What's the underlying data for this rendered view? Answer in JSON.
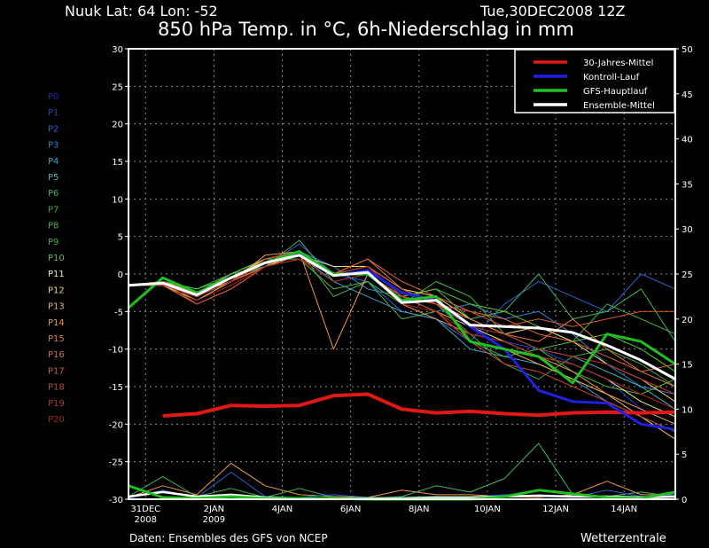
{
  "header": {
    "location": "Nuuk  Lat: 64 Lon: -52",
    "run": "Tue,30DEC2008 12Z",
    "title": "850 hPa Temp. in °C, 6h-Niederschlag in mm"
  },
  "footer": {
    "source": "Daten: Ensembles des GFS von NCEP",
    "brand": "Wetterzentrale"
  },
  "chart_data": {
    "type": "line",
    "title": "850 hPa Temp. in °C, 6h-Niederschlag in mm",
    "x_range": [
      "2008-12-30T12:00Z",
      "2009-01-15T12:00Z"
    ],
    "x": [
      "2008-12-30T12:00Z",
      "2008-12-31T12:00Z",
      "2009-01-01T12:00Z",
      "2009-01-02T12:00Z",
      "2009-01-03T12:00Z",
      "2009-01-04T12:00Z",
      "2009-01-05T12:00Z",
      "2009-01-06T12:00Z",
      "2009-01-07T12:00Z",
      "2009-01-08T12:00Z",
      "2009-01-09T12:00Z",
      "2009-01-10T12:00Z",
      "2009-01-11T12:00Z",
      "2009-01-12T12:00Z",
      "2009-01-13T12:00Z",
      "2009-01-14T12:00Z",
      "2009-01-15T12:00Z"
    ],
    "x_ticks": [
      {
        "date": "2008-12-31T00:00Z",
        "label": "31DEC",
        "sub": "2008"
      },
      {
        "date": "2009-01-02T00:00Z",
        "label": "2JAN",
        "sub": "2009"
      },
      {
        "date": "2009-01-04T00:00Z",
        "label": "4JAN",
        "sub": ""
      },
      {
        "date": "2009-01-06T00:00Z",
        "label": "6JAN",
        "sub": ""
      },
      {
        "date": "2009-01-08T00:00Z",
        "label": "8JAN",
        "sub": ""
      },
      {
        "date": "2009-01-10T00:00Z",
        "label": "10JAN",
        "sub": ""
      },
      {
        "date": "2009-01-12T00:00Z",
        "label": "12JAN",
        "sub": ""
      },
      {
        "date": "2009-01-14T00:00Z",
        "label": "14JAN",
        "sub": ""
      }
    ],
    "y_left": {
      "label": "°C",
      "range": [
        -30,
        30
      ],
      "ticks": [
        -30,
        -25,
        -20,
        -15,
        -10,
        -5,
        0,
        5,
        10,
        15,
        20,
        25,
        30
      ]
    },
    "y_right": {
      "label": "mm",
      "range": [
        0,
        50
      ],
      "ticks": [
        0,
        5,
        10,
        15,
        20,
        25,
        30,
        35,
        40,
        45,
        50
      ]
    },
    "grid": true,
    "legend_position": "top-right",
    "legend": [
      {
        "name": "30-Jahres-Mittel",
        "color": "#e01818"
      },
      {
        "name": "Kontroll-Lauf",
        "color": "#2020e0"
      },
      {
        "name": "GFS-Hauptlauf",
        "color": "#20c020"
      },
      {
        "name": "Ensemble-Mittel",
        "color": "#ffffff"
      }
    ],
    "main_series": {
      "climatology": [
        null,
        -18.9,
        -18.6,
        -17.5,
        -17.6,
        -17.5,
        -16.2,
        -16.0,
        -18.0,
        -18.5,
        -18.3,
        -18.6,
        -18.8,
        -18.5,
        -18.4,
        -18.5,
        -18.4
      ],
      "control": [
        -1.5,
        -1.2,
        -2.8,
        -0.5,
        1.5,
        2.8,
        -0.2,
        0.5,
        -2.5,
        -3.5,
        -7.0,
        -10.0,
        -15.5,
        -17.0,
        -17.2,
        -20.0,
        -20.7
      ],
      "gfs": [
        -4.5,
        -0.5,
        -2.5,
        -0.5,
        1.5,
        3.0,
        0.0,
        0.0,
        -3.5,
        -3.0,
        -9.0,
        -10.0,
        -11.0,
        -14.5,
        -8.0,
        -9.0,
        -12.0
      ],
      "mean": [
        -1.5,
        -1.2,
        -2.8,
        -0.5,
        1.5,
        2.5,
        -0.2,
        0.2,
        -3.8,
        -3.5,
        -6.8,
        -7.0,
        -7.2,
        -7.8,
        -9.5,
        -11.5,
        -14.0
      ]
    },
    "members": [
      {
        "name": "P0",
        "color": "#2020c0",
        "values": [
          -1.5,
          -1.2,
          -2.8,
          -0.5,
          1.5,
          2.8,
          -0.2,
          0.5,
          -2.5,
          -3.5,
          -7,
          -10,
          -15.5,
          -17,
          -17.2,
          -20,
          -20.7
        ]
      },
      {
        "name": "P1",
        "color": "#2040d0",
        "values": [
          -1.5,
          -1,
          -3,
          0,
          2,
          3,
          0,
          1,
          -2,
          -4,
          -7,
          -9,
          -10,
          -12,
          -14,
          -18,
          -20
        ]
      },
      {
        "name": "P2",
        "color": "#3060d0",
        "values": [
          -1.5,
          -1.5,
          -3,
          -1,
          1,
          4,
          0,
          -1,
          -5,
          -6,
          -9,
          -4,
          -1,
          -3,
          -5,
          0,
          -2
        ]
      },
      {
        "name": "P3",
        "color": "#3080d0",
        "values": [
          -1.5,
          -1,
          -2,
          0,
          2,
          3,
          1,
          -2,
          -3,
          -5,
          -4,
          -6,
          -5,
          -8,
          -12,
          -15,
          -16
        ]
      },
      {
        "name": "P4",
        "color": "#40a0c8",
        "values": [
          -1.5,
          -1,
          -2.5,
          -1,
          1.5,
          2.5,
          -1,
          -3,
          -5,
          -6,
          -10,
          -11,
          -12,
          -14,
          -17,
          -19,
          -21
        ]
      },
      {
        "name": "P5",
        "color": "#40b8b8",
        "values": [
          -1.5,
          -1.5,
          -3,
          0,
          2,
          3,
          0,
          0,
          -3,
          -4,
          -6,
          -8,
          -10,
          -11,
          -13,
          -15,
          -18
        ]
      },
      {
        "name": "P6",
        "color": "#40b860",
        "values": [
          -1.5,
          -1,
          -2,
          -0.5,
          1,
          4.5,
          -1,
          0,
          -3,
          -2,
          -6,
          -5,
          0,
          -6,
          -5,
          -2,
          -9
        ]
      },
      {
        "name": "P7",
        "color": "#40a840",
        "values": [
          -1.5,
          -1,
          -3,
          0,
          1,
          3,
          0,
          1,
          -2,
          -4,
          -8,
          -12,
          -14,
          -11,
          -10,
          -12,
          -15
        ]
      },
      {
        "name": "P8",
        "color": "#48b840",
        "values": [
          -1.5,
          -1,
          -2,
          0,
          2,
          2,
          -2,
          -1,
          -4,
          -1,
          -3,
          -8,
          -10,
          -9,
          -4,
          -6,
          -8
        ]
      },
      {
        "name": "P9",
        "color": "#48b040",
        "values": [
          -1.5,
          -1.5,
          -3,
          -1,
          2,
          3,
          -3,
          -1,
          -6,
          -5,
          -9,
          -11,
          -10,
          -13,
          -15,
          -16,
          -14
        ]
      },
      {
        "name": "P10",
        "color": "#58c830",
        "values": [
          -1.5,
          -1,
          -2.5,
          0,
          2,
          3,
          0,
          0,
          -3,
          -2,
          -4,
          -5,
          -7,
          -9,
          -8,
          -10,
          -13
        ]
      },
      {
        "name": "P11",
        "color": "#f0f080",
        "values": [
          -1.5,
          -1,
          -3,
          -0.5,
          2,
          3,
          0,
          0,
          -3,
          -4,
          -7,
          -9,
          -11,
          -12,
          -14,
          -17,
          -19
        ]
      },
      {
        "name": "P12",
        "color": "#f0d868",
        "values": [
          -1.5,
          -1.5,
          -3.5,
          -1,
          1,
          2.5,
          1,
          1,
          -2,
          -3,
          -6,
          -8,
          -7,
          -9,
          -12,
          -14,
          -17
        ]
      },
      {
        "name": "P13",
        "color": "#f0b860",
        "values": [
          -1.5,
          -1,
          -2.5,
          -1,
          2,
          3,
          0,
          1,
          -3,
          -5,
          -7,
          -10,
          -12,
          -14,
          -16,
          -19,
          -22
        ]
      },
      {
        "name": "P14",
        "color": "#f09848",
        "values": [
          -1.5,
          -1,
          -3,
          -1,
          2.5,
          3,
          -10,
          0,
          -4,
          -6,
          -8,
          -9,
          -11,
          -13,
          -16,
          -18,
          -20
        ]
      },
      {
        "name": "P15",
        "color": "#e87838",
        "values": [
          -1.5,
          -1.5,
          -4,
          -2,
          1,
          3,
          0,
          2,
          -2,
          -4,
          -6,
          -8,
          -9,
          -6,
          -10,
          -13,
          -15
        ]
      },
      {
        "name": "P16",
        "color": "#e06838",
        "values": [
          -1.5,
          -1,
          -3,
          -1,
          1,
          2,
          0,
          2,
          -1,
          -3,
          -5,
          -6,
          -8,
          -9,
          -11,
          -13,
          -12
        ]
      },
      {
        "name": "P17",
        "color": "#d85830",
        "values": [
          -1.5,
          -1,
          -4,
          -2,
          1,
          2,
          0,
          1,
          -2,
          -4,
          -5,
          -7,
          -6,
          -7,
          -6,
          -5,
          -5
        ]
      },
      {
        "name": "P18",
        "color": "#d04030",
        "values": [
          -1.5,
          -1,
          -3,
          -1,
          2,
          3,
          0,
          0,
          -3,
          -5,
          -9,
          -12,
          -13,
          -15,
          -17,
          -19,
          -21
        ]
      },
      {
        "name": "P19",
        "color": "#c03020",
        "values": [
          -1.5,
          -1.5,
          -3,
          -1,
          1.5,
          2.5,
          0,
          1,
          -3,
          -4,
          -7,
          -8,
          -10,
          -11,
          -12,
          -14,
          -16
        ]
      },
      {
        "name": "P20",
        "color": "#b02020",
        "values": [
          -1.5,
          -1,
          -3.5,
          -1.5,
          1,
          2,
          -1,
          0,
          -4,
          -5,
          -8,
          -9,
          -11,
          -12,
          -14,
          -16,
          -18
        ]
      }
    ],
    "precip": {
      "mean": [
        0.3,
        0.8,
        0.3,
        0.5,
        0.2,
        0.1,
        0.1,
        0.1,
        0.1,
        0.2,
        0.2,
        0.3,
        0.4,
        0.3,
        0.3,
        0.2,
        0.3
      ],
      "gfs": [
        1.5,
        0.2,
        0.1,
        0.3,
        0.1,
        0.1,
        0.1,
        0,
        0,
        0,
        0,
        0.3,
        1.0,
        0.6,
        0.2,
        0.1,
        0.8
      ],
      "members": [
        {
          "name": "P14",
          "values": [
            0.2,
            1.5,
            0.5,
            4.0,
            1.5,
            0.5,
            0.3,
            0.2,
            1.0,
            0.5,
            0.5,
            0.3,
            0.2,
            0.5,
            2.0,
            0.5,
            0.5
          ]
        },
        {
          "name": "P6",
          "values": [
            0.3,
            2.5,
            0.3,
            1.2,
            0.2,
            1.2,
            0.2,
            0.1,
            0.3,
            1.5,
            0.8,
            2.3,
            6.2,
            0.5,
            0.3,
            0.8,
            0.3
          ]
        },
        {
          "name": "P2",
          "values": [
            0.1,
            1.0,
            0.2,
            3.0,
            0.3,
            0.2,
            0.5,
            0.2,
            0.2,
            0.3,
            0.2,
            0.5,
            0.3,
            0.2,
            1.0,
            0.3,
            0.5
          ]
        }
      ]
    }
  }
}
